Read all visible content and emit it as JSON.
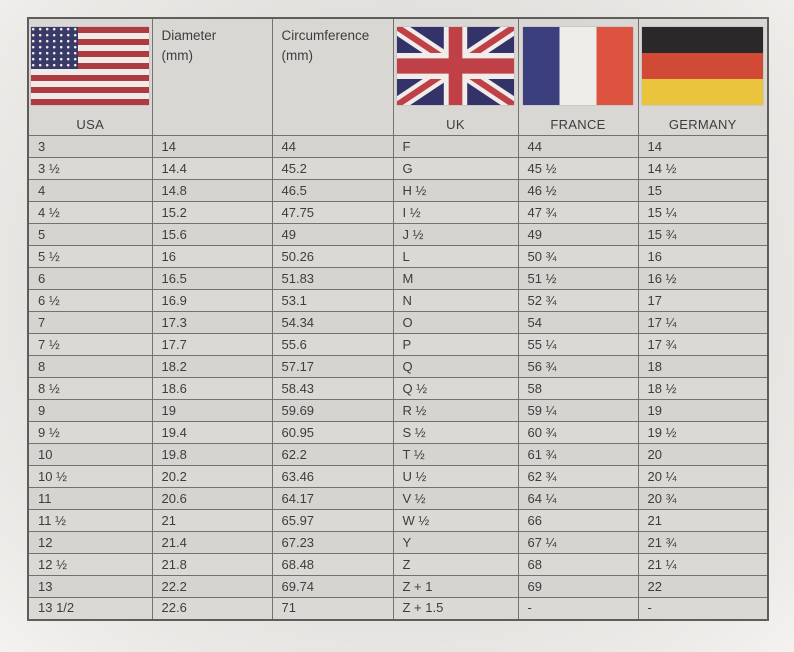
{
  "table": {
    "headers": {
      "usa_label": "USA",
      "uk_label": "UK",
      "france_label": "FRANCE",
      "germany_label": "GERMANY",
      "diameter_lines": [
        "Diameter",
        "(mm)"
      ],
      "circumference_lines": [
        "Circumference",
        "(mm)"
      ]
    },
    "columns": [
      "USA",
      "Diameter (mm)",
      "Circumference (mm)",
      "UK",
      "FRANCE",
      "GERMANY"
    ],
    "rows": [
      [
        "3",
        "14",
        "44",
        "F",
        "44",
        "14"
      ],
      [
        "3 ½",
        "14.4",
        "45.2",
        "G",
        "45 ½",
        "14 ½"
      ],
      [
        "4",
        "14.8",
        "46.5",
        "H ½",
        "46 ½",
        "15"
      ],
      [
        "4 ½",
        "15.2",
        "47.75",
        "I ½",
        "47 ¾",
        "15 ¼"
      ],
      [
        "5",
        "15.6",
        "49",
        "J ½",
        "49",
        "15 ¾"
      ],
      [
        "5 ½",
        "16",
        "50.26",
        "L",
        "50 ¾",
        "16"
      ],
      [
        "6",
        "16.5",
        "51.83",
        "M",
        "51 ½",
        "16 ½"
      ],
      [
        "6 ½",
        "16.9",
        "53.1",
        "N",
        "52 ¾",
        "17"
      ],
      [
        "7",
        "17.3",
        "54.34",
        "O",
        "54",
        "17 ¼"
      ],
      [
        "7 ½",
        "17.7",
        "55.6",
        "P",
        "55 ¼",
        "17 ¾"
      ],
      [
        "8",
        "18.2",
        "57.17",
        "Q",
        "56 ¾",
        "18"
      ],
      [
        "8 ½",
        "18.6",
        "58.43",
        "Q ½",
        "58",
        "18 ½"
      ],
      [
        "9",
        "19",
        "59.69",
        "R ½",
        "59 ¼",
        "19"
      ],
      [
        "9 ½",
        "19.4",
        "60.95",
        "S ½",
        "60 ¾",
        "19 ½"
      ],
      [
        "10",
        "19.8",
        "62.2",
        "T ½",
        "61 ¾",
        "20"
      ],
      [
        "10 ½",
        "20.2",
        "63.46",
        "U ½",
        "62 ¾",
        "20 ¼"
      ],
      [
        "11",
        "20.6",
        "64.17",
        "V ½",
        "64 ¼",
        "20 ¾"
      ],
      [
        "11 ½",
        "21",
        "65.97",
        "W ½",
        "66",
        "21"
      ],
      [
        "12",
        "21.4",
        "67.23",
        "Y",
        "67 ¼",
        "21 ¾"
      ],
      [
        "12 ½",
        "21.8",
        "68.48",
        "Z",
        "68",
        "21 ¼"
      ],
      [
        "13",
        "22.2",
        "69.74",
        "Z + 1",
        "69",
        "22"
      ],
      [
        "13 1/2",
        "22.6",
        "71",
        "Z + 1.5",
        "-",
        "-"
      ]
    ]
  },
  "colors": {
    "usa_flag_red": "#ae3b40",
    "usa_flag_blue": "#3a3a68",
    "uk_flag_blue": "#33336a",
    "uk_flag_red": "#bf4046",
    "france_flag_blue": "#3c3f7e",
    "france_flag_red": "#de5240",
    "germany_flag_black": "#2b2829",
    "germany_flag_red": "#d04a36",
    "germany_flag_gold": "#e9c43c",
    "flag_white": "#efece9",
    "cell_background": "#d8d6d3",
    "grid_line": "#75726e",
    "text": "#3f3d3b"
  }
}
